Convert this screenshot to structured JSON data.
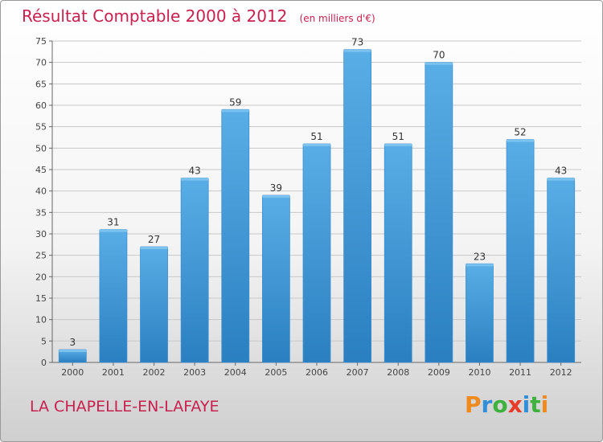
{
  "header": {
    "title": "Résultat Comptable 2000 à 2012",
    "subtitle": "(en milliers d'€)"
  },
  "footer": {
    "city": "LA CHAPELLE-EN-LAFAYE",
    "logo_letters": [
      {
        "char": "P",
        "color": "#f08a1c"
      },
      {
        "char": "r",
        "color": "#2f8fd8"
      },
      {
        "char": "o",
        "color": "#3fb13f"
      },
      {
        "char": "x",
        "color": "#e83c2a"
      },
      {
        "char": "i",
        "color": "#2f8fd8"
      },
      {
        "char": "t",
        "color": "#3fb13f"
      },
      {
        "char": "i",
        "color": "#f08a1c"
      }
    ]
  },
  "chart_data": {
    "type": "bar",
    "categories": [
      "2000",
      "2001",
      "2002",
      "2003",
      "2004",
      "2005",
      "2006",
      "2007",
      "2008",
      "2009",
      "2010",
      "2011",
      "2012"
    ],
    "values": [
      3,
      31,
      27,
      43,
      59,
      39,
      51,
      73,
      51,
      70,
      23,
      52,
      43
    ],
    "ylim": [
      0,
      75
    ],
    "yticks": [
      0,
      5,
      10,
      15,
      20,
      25,
      30,
      35,
      40,
      45,
      50,
      55,
      60,
      65,
      70,
      75
    ],
    "grid": true,
    "bar_color_top": "#5aaee6",
    "bar_color_bottom": "#2a7fc0",
    "label_color": "#333333"
  }
}
